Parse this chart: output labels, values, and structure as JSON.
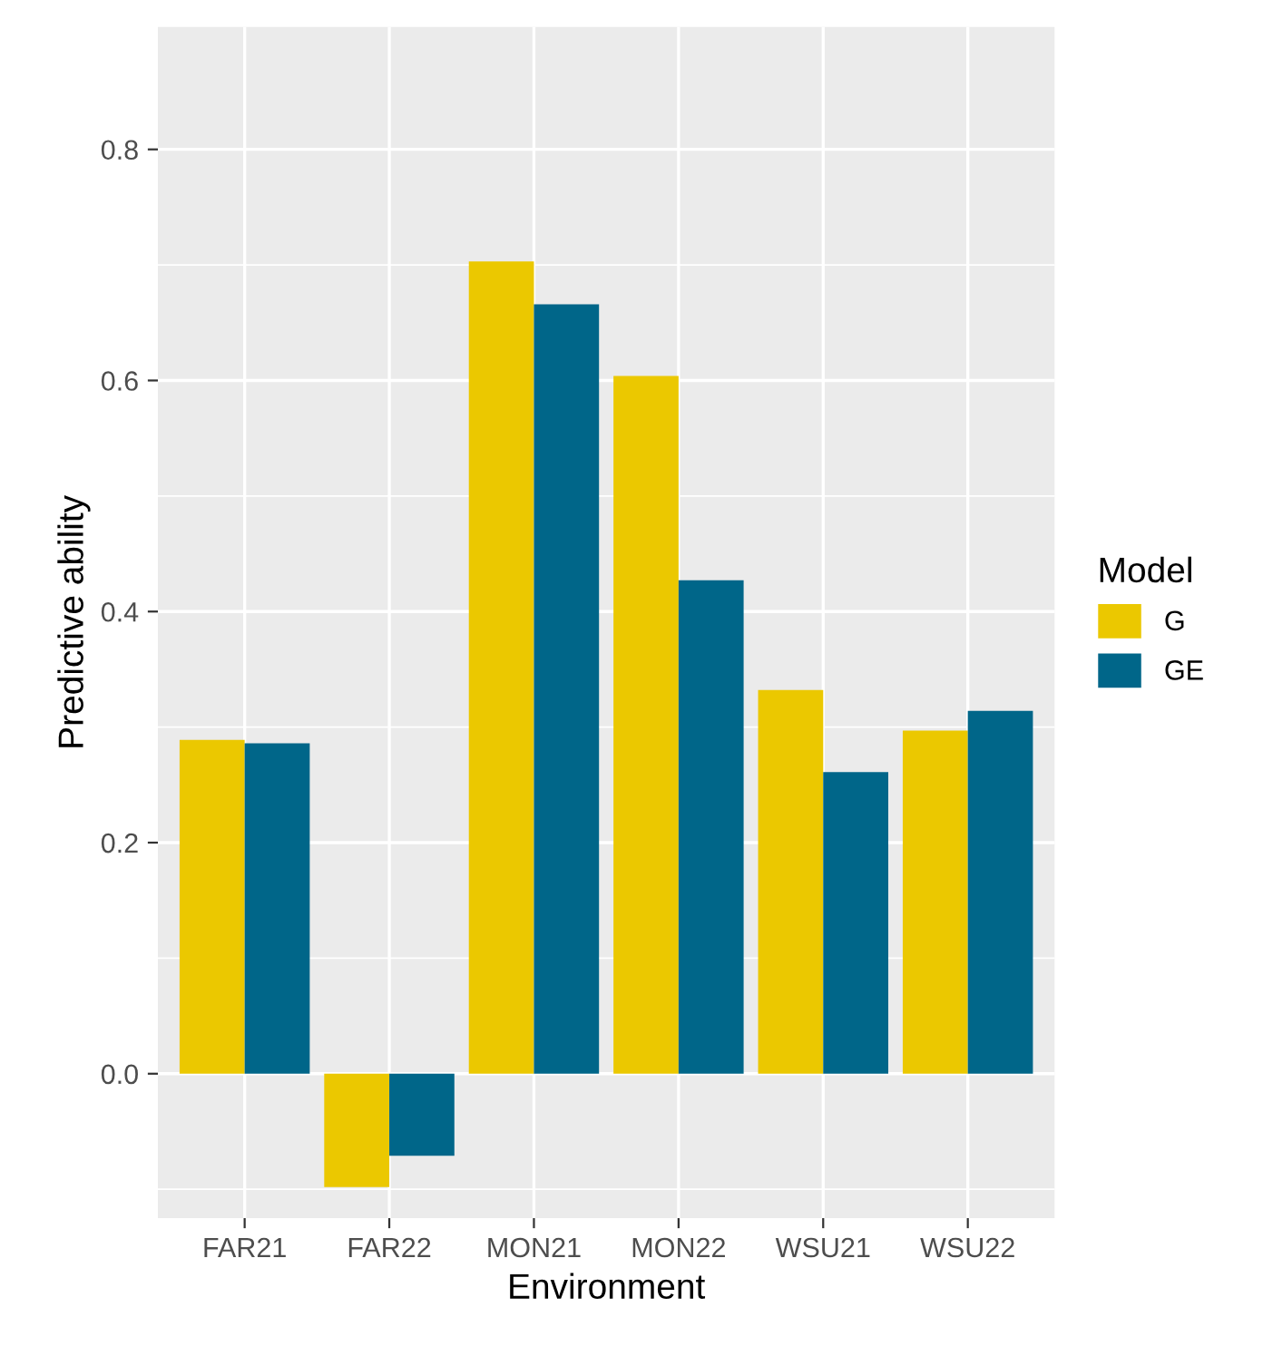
{
  "chart_data": {
    "type": "bar",
    "xlabel": "Environment",
    "ylabel": "Predictive ability",
    "legend_title": "Model",
    "categories": [
      "FAR21",
      "FAR22",
      "MON21",
      "MON22",
      "WSU21",
      "WSU22"
    ],
    "series": [
      {
        "name": "G",
        "color": "#ebc800",
        "values": [
          0.289,
          -0.098,
          0.703,
          0.604,
          0.332,
          0.297
        ]
      },
      {
        "name": "GE",
        "color": "#006689",
        "values": [
          0.286,
          -0.071,
          0.666,
          0.427,
          0.261,
          0.314
        ]
      }
    ],
    "ylim": [
      -0.125,
      0.906
    ],
    "yticks": [
      {
        "value": -0.1,
        "label": null
      },
      {
        "value": 0,
        "label": "0.0"
      },
      {
        "value": 0.1,
        "label": null
      },
      0.2,
      {
        "value": 0.3,
        "label": null
      },
      0.4,
      {
        "value": 0.5,
        "label": null
      },
      0.6,
      {
        "value": 0.7,
        "label": null
      },
      0.8
    ],
    "grid": true,
    "legend": "right"
  }
}
